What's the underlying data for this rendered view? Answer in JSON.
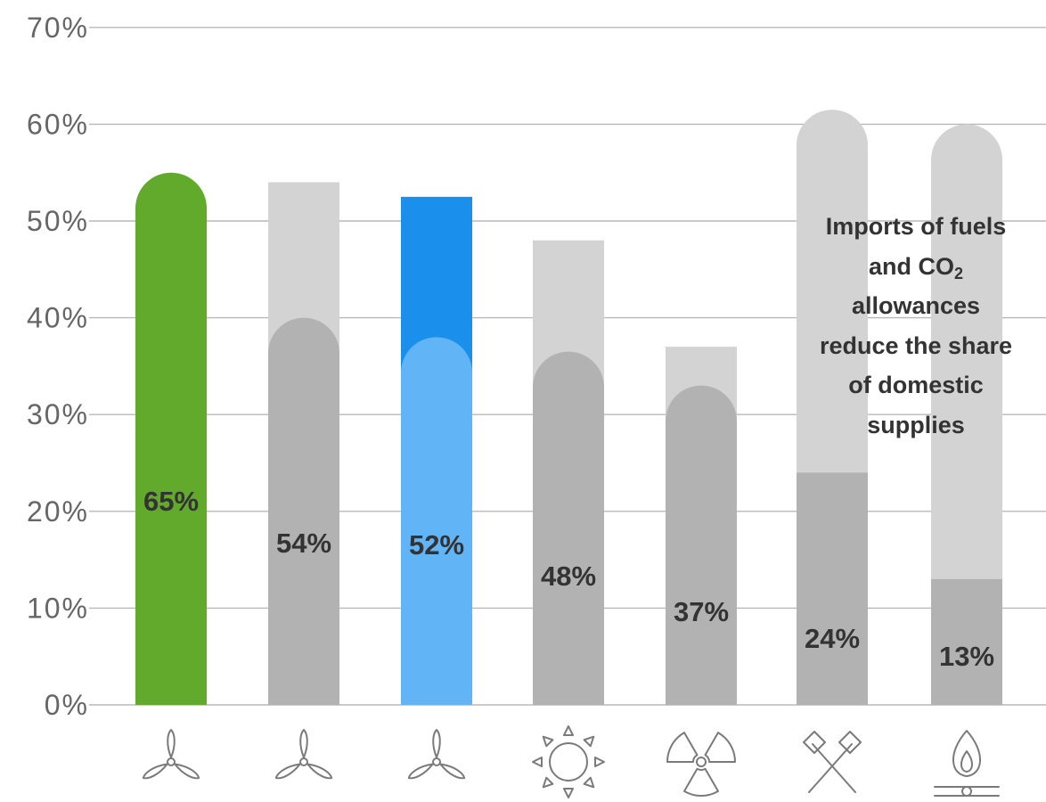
{
  "chart_data": {
    "type": "bar",
    "y_tick_labels": [
      "0%",
      "10%",
      "20%",
      "30%",
      "40%",
      "50%",
      "60%",
      "70%"
    ],
    "ylim": [
      0,
      70
    ],
    "grid": true,
    "series": [
      {
        "values": [
          55,
          54,
          52.5,
          48,
          37,
          61.5,
          60
        ]
      },
      {
        "values": [
          65,
          40,
          38,
          36.5,
          33,
          24,
          13
        ]
      }
    ],
    "data_labels": [
      "65%",
      "54%",
      "52%",
      "48%",
      "37%",
      "24%",
      "13%"
    ],
    "category_icons": [
      "wind-turbine-icon",
      "wind-turbine-icon",
      "wind-turbine-icon",
      "sun-icon",
      "radiation-icon",
      "crossed-hammers-icon",
      "gas-flame-icon"
    ],
    "annotation": {
      "line1": "Imports of fuels",
      "line2_pre": "and CO",
      "line2_sub": "2",
      "line3": "allowances",
      "line4": "reduce the share",
      "line5": "of domestic",
      "line6": "supplies"
    },
    "colors": {
      "green": "#62aa2c",
      "blue_dark": "#1b8fec",
      "blue_light": "#61b4f6",
      "grey_light": "#d3d3d3",
      "grey_dark": "#b2b2b2",
      "grid": "#b8b8b8",
      "icon": "#7a7a7a"
    }
  }
}
